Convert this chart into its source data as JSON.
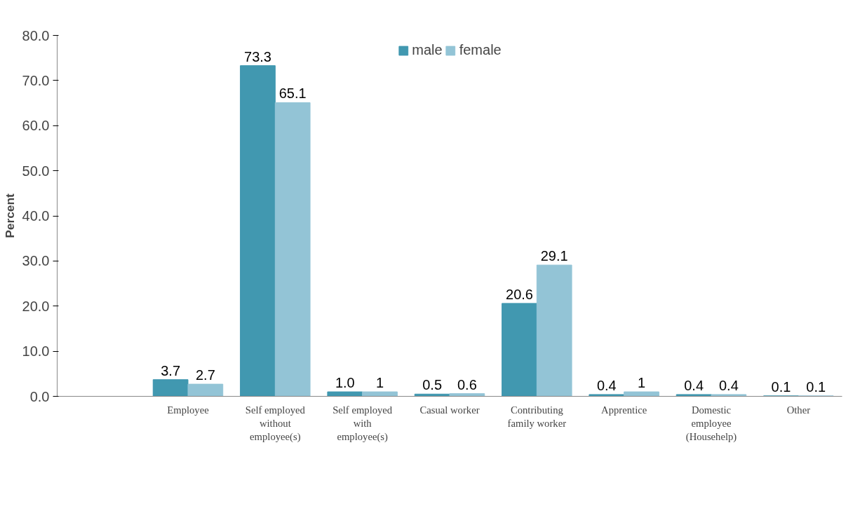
{
  "chart_data": {
    "type": "bar",
    "ylabel": "Percent",
    "categories": [
      null,
      "Employee",
      "Self employed\nwithout\nemployee(s)",
      "Self employed\nwith\nemployee(s)",
      "Casual worker",
      "Contributing\nfamily worker",
      "Apprentice",
      "Domestic\nemployee\n(Househelp)",
      "Other"
    ],
    "series": [
      {
        "name": "male",
        "color": "#4198b0",
        "values": [
          null,
          3.7,
          73.3,
          1.0,
          0.5,
          20.6,
          0.4,
          0.4,
          0.1
        ],
        "value_labels": [
          null,
          "3.7",
          "73.3",
          "1.0",
          "0.5",
          "20.6",
          "0.4",
          "0.4",
          "0.1"
        ]
      },
      {
        "name": "female",
        "color": "#93c4d6",
        "values": [
          null,
          2.7,
          65.1,
          1,
          0.6,
          29.1,
          1,
          0.4,
          0.1
        ],
        "value_labels": [
          null,
          "2.7",
          "65.1",
          "1",
          "0.6",
          "29.1",
          "1",
          "0.4",
          "0.1"
        ]
      }
    ],
    "ylim": [
      0,
      80
    ],
    "yticks": [
      {
        "value": 0,
        "label": "0.0"
      },
      {
        "value": 10,
        "label": "10.0"
      },
      {
        "value": 20,
        "label": "20.0"
      },
      {
        "value": 30,
        "label": "30.0"
      },
      {
        "value": 40,
        "label": "40.0"
      },
      {
        "value": 50,
        "label": "50.0"
      },
      {
        "value": 60,
        "label": "60.0"
      },
      {
        "value": 70,
        "label": "70.0"
      },
      {
        "value": 80,
        "label": "80.0"
      }
    ],
    "grid": false,
    "legend": "top"
  }
}
